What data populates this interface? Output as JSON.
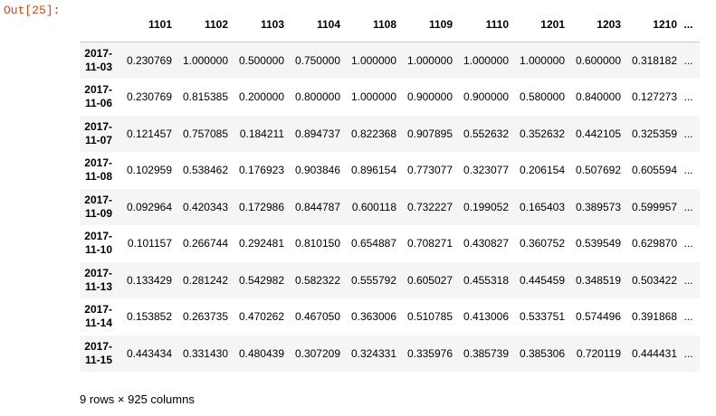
{
  "prompt": "Out[25]:",
  "columns": [
    "1101",
    "1102",
    "1103",
    "1104",
    "1108",
    "1109",
    "1110",
    "1201",
    "1203",
    "1210",
    "..."
  ],
  "rows": [
    {
      "year": "2017-",
      "md": "11-03",
      "values": [
        "0.230769",
        "1.000000",
        "0.500000",
        "0.750000",
        "1.000000",
        "1.000000",
        "1.000000",
        "1.000000",
        "0.600000",
        "0.318182",
        "..."
      ]
    },
    {
      "year": "2017-",
      "md": "11-06",
      "values": [
        "0.230769",
        "0.815385",
        "0.200000",
        "0.800000",
        "1.000000",
        "0.900000",
        "0.900000",
        "0.580000",
        "0.840000",
        "0.127273",
        "..."
      ]
    },
    {
      "year": "2017-",
      "md": "11-07",
      "values": [
        "0.121457",
        "0.757085",
        "0.184211",
        "0.894737",
        "0.822368",
        "0.907895",
        "0.552632",
        "0.352632",
        "0.442105",
        "0.325359",
        "..."
      ]
    },
    {
      "year": "2017-",
      "md": "11-08",
      "values": [
        "0.102959",
        "0.538462",
        "0.176923",
        "0.903846",
        "0.896154",
        "0.773077",
        "0.323077",
        "0.206154",
        "0.507692",
        "0.605594",
        "..."
      ]
    },
    {
      "year": "2017-",
      "md": "11-09",
      "values": [
        "0.092964",
        "0.420343",
        "0.172986",
        "0.844787",
        "0.600118",
        "0.732227",
        "0.199052",
        "0.165403",
        "0.389573",
        "0.599957",
        "..."
      ]
    },
    {
      "year": "2017-",
      "md": "11-10",
      "values": [
        "0.101157",
        "0.266744",
        "0.292481",
        "0.810150",
        "0.654887",
        "0.708271",
        "0.430827",
        "0.360752",
        "0.539549",
        "0.629870",
        "..."
      ]
    },
    {
      "year": "2017-",
      "md": "11-13",
      "values": [
        "0.133429",
        "0.281242",
        "0.542982",
        "0.582322",
        "0.555792",
        "0.605027",
        "0.455318",
        "0.445459",
        "0.348519",
        "0.503422",
        "..."
      ]
    },
    {
      "year": "2017-",
      "md": "11-14",
      "values": [
        "0.153852",
        "0.263735",
        "0.470262",
        "0.467050",
        "0.363006",
        "0.510785",
        "0.413006",
        "0.533751",
        "0.574496",
        "0.391868",
        "..."
      ]
    },
    {
      "year": "2017-",
      "md": "11-15",
      "values": [
        "0.443434",
        "0.331430",
        "0.480439",
        "0.307209",
        "0.324331",
        "0.335976",
        "0.385739",
        "0.385306",
        "0.720119",
        "0.444431",
        "..."
      ]
    }
  ],
  "summary": "9 rows × 925 columns"
}
